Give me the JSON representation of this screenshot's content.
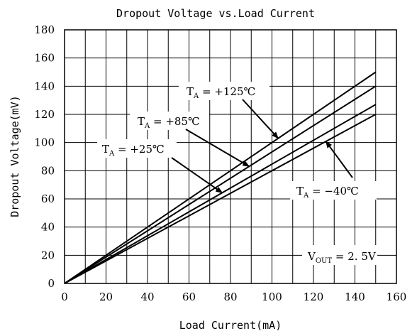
{
  "chart_data": {
    "type": "line",
    "title": "Dropout Voltage vs.Load Current",
    "xlabel": "Load Current(mA)",
    "ylabel": "Dropout Voltage(mV)",
    "xlim": [
      0,
      160
    ],
    "ylim": [
      0,
      180
    ],
    "xticks": [
      "0",
      "20",
      "40",
      "60",
      "80",
      "100",
      "120",
      "140",
      "160"
    ],
    "yticks": [
      "0",
      "20",
      "40",
      "60",
      "80",
      "100",
      "120",
      "140",
      "160",
      "180"
    ],
    "grid": true,
    "series": [
      {
        "name": "TA = +125℃",
        "x": [
          0,
          150
        ],
        "y": [
          0,
          150
        ]
      },
      {
        "name": "TA = +85℃",
        "x": [
          0,
          150
        ],
        "y": [
          0,
          140
        ]
      },
      {
        "name": "TA = +25℃",
        "x": [
          0,
          150
        ],
        "y": [
          0,
          127
        ]
      },
      {
        "name": "TA = -40℃",
        "x": [
          0,
          150
        ],
        "y": [
          0,
          120
        ]
      }
    ],
    "annotations": [
      {
        "id": "a125",
        "main": "T",
        "sub": "A",
        "rest": " = +125℃",
        "target_series": 0,
        "target_x": 103
      },
      {
        "id": "a85",
        "main": "T",
        "sub": "A",
        "rest": " = +85℃",
        "target_series": 1,
        "target_x": 89
      },
      {
        "id": "a25",
        "main": "T",
        "sub": "A",
        "rest": " = +25℃",
        "target_series": 2,
        "target_x": 76
      },
      {
        "id": "am40",
        "main": "T",
        "sub": "A",
        "rest": " = −40℃",
        "target_series": 3,
        "target_x": 126
      },
      {
        "id": "vout",
        "main": "V",
        "sub": "OUT",
        "rest": " = 2. 5V"
      }
    ]
  }
}
